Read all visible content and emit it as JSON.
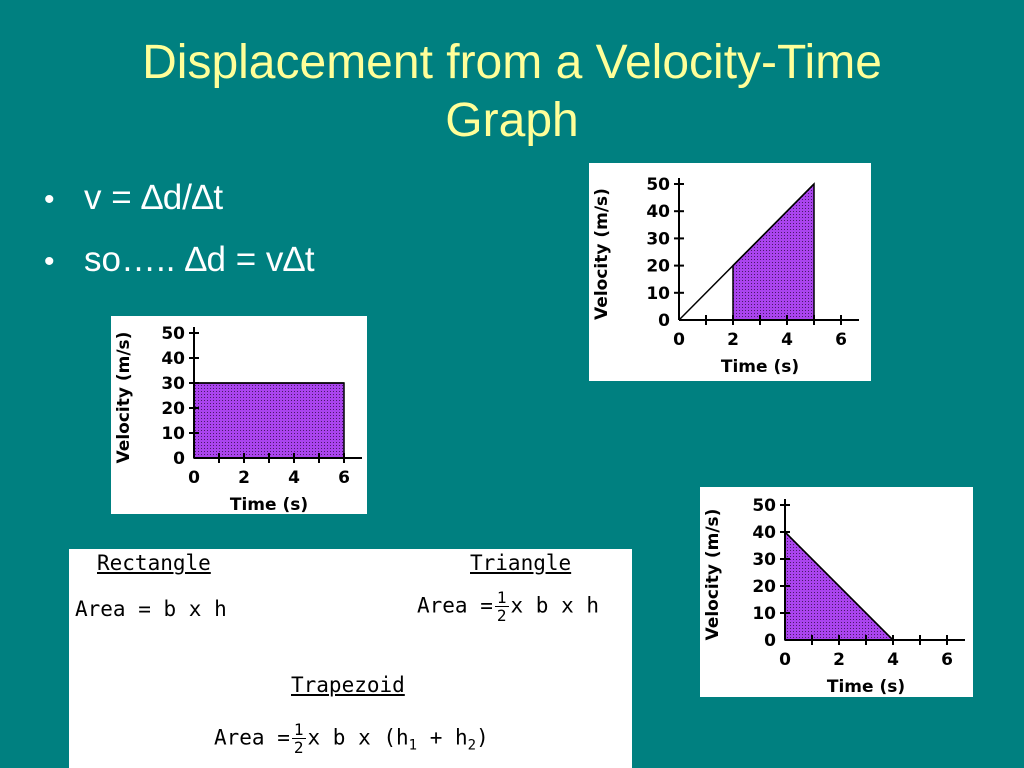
{
  "slide": {
    "title_line1": "Displacement from a Velocity-Time",
    "title_line2": "Graph",
    "bullets": [
      {
        "marker": "•",
        "text": "v = ∆d/∆t"
      },
      {
        "marker": "•",
        "text": "so….. ∆d = v∆t"
      }
    ]
  },
  "colors": {
    "background": "#008080",
    "title": "#ffff99",
    "shade": "#aa44ee"
  },
  "chart_data": [
    {
      "type": "line",
      "title": "",
      "xlabel": "Time (s)",
      "ylabel": "Velocity (m/s)",
      "xlim": [
        0,
        6
      ],
      "ylim": [
        0,
        50
      ],
      "x_ticks": [
        "0",
        "2",
        "4",
        "6"
      ],
      "y_ticks": [
        "0",
        "10",
        "20",
        "30",
        "40",
        "50"
      ],
      "x": [
        0,
        6
      ],
      "y": [
        30,
        30
      ],
      "shaded_region": {
        "x_from": 0,
        "x_to": 6,
        "shape": "rectangle"
      }
    },
    {
      "type": "line",
      "title": "",
      "xlabel": "Time (s)",
      "ylabel": "Velocity (m/s)",
      "xlim": [
        0,
        6
      ],
      "ylim": [
        0,
        50
      ],
      "x_ticks": [
        "0",
        "2",
        "4",
        "6"
      ],
      "y_ticks": [
        "0",
        "10",
        "20",
        "30",
        "40",
        "50"
      ],
      "x": [
        0,
        5
      ],
      "y": [
        0,
        50
      ],
      "shaded_region": {
        "x_from": 2,
        "x_to": 5,
        "shape": "trapezoid"
      }
    },
    {
      "type": "line",
      "title": "",
      "xlabel": "Time (s)",
      "ylabel": "Velocity (m/s)",
      "xlim": [
        0,
        6
      ],
      "ylim": [
        0,
        50
      ],
      "x_ticks": [
        "0",
        "2",
        "4",
        "6"
      ],
      "y_ticks": [
        "0",
        "10",
        "20",
        "30",
        "40",
        "50"
      ],
      "x": [
        0,
        4
      ],
      "y": [
        40,
        0
      ],
      "shaded_region": {
        "x_from": 0,
        "x_to": 4,
        "shape": "triangle"
      }
    }
  ],
  "formulas": {
    "rectangle": {
      "heading": "Rectangle",
      "area": "Area = b x h"
    },
    "triangle": {
      "heading": "Triangle",
      "area_prefix": "Area =",
      "frac_num": "1",
      "frac_den": "2",
      "area_suffix": "x b x h"
    },
    "trapezoid": {
      "heading": "Trapezoid",
      "area_prefix": "Area =",
      "frac_num": "1",
      "frac_den": "2",
      "area_mid": "x b x (h",
      "sub1": "1",
      "plus": " + h",
      "sub2": "2",
      "close": ")"
    }
  }
}
